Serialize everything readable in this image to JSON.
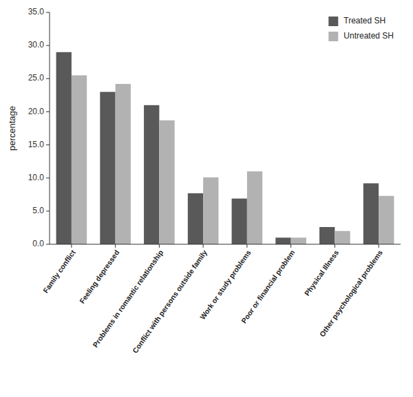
{
  "chart_data": {
    "type": "bar",
    "categories": [
      "Family conflict",
      "Feeling depressed",
      "Problems in romantic relationship",
      "Conflict with persons outside family",
      "Work or study problems",
      "Poor or financial problem",
      "Physical Illness",
      "Other psychological problems"
    ],
    "series": [
      {
        "name": "Treated SH",
        "color": "#595959",
        "values": [
          29.0,
          23.0,
          21.0,
          7.7,
          6.9,
          1.0,
          2.6,
          9.2
        ]
      },
      {
        "name": "Untreated SH",
        "color": "#b2b2b2",
        "values": [
          25.5,
          24.2,
          18.7,
          10.1,
          11.0,
          1.0,
          2.0,
          7.3
        ]
      }
    ],
    "ylabel": "percentage",
    "ylim": [
      0,
      35.0
    ],
    "yticks": [
      {
        "value": 0.0,
        "label": "0.0"
      },
      {
        "value": 5.0,
        "label": "5.0"
      },
      {
        "value": 10.0,
        "label": "10.0"
      },
      {
        "value": 15.0,
        "label": "15.0"
      },
      {
        "value": 20.0,
        "label": "20.0"
      },
      {
        "value": 25.0,
        "label": "25.0"
      },
      {
        "value": 30.0,
        "label": "30.0"
      },
      {
        "value": 35.0,
        "label": "35.0"
      }
    ],
    "legend": "upper right",
    "grid": false
  }
}
